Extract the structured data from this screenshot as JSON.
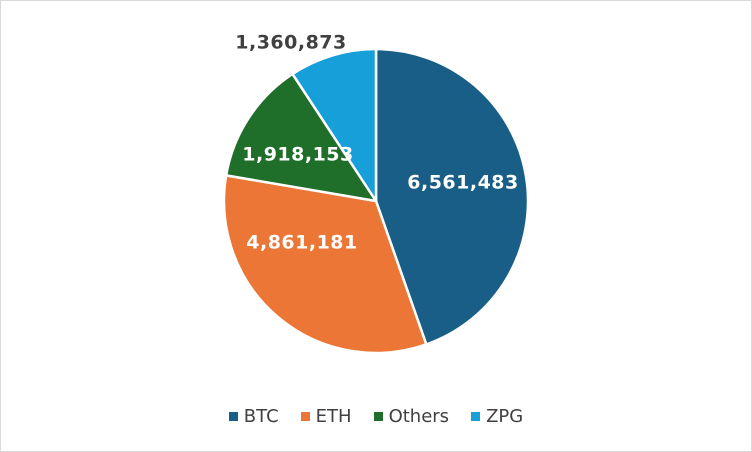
{
  "chart_data": {
    "type": "pie",
    "title": "",
    "categories": [
      "BTC",
      "ETH",
      "Others",
      "ZPG"
    ],
    "values": [
      6561483,
      4861181,
      1918153,
      1360873
    ],
    "data_labels": [
      "6,561,483",
      "4,861,181",
      "1,918,153",
      "1,360,873"
    ],
    "colors": [
      "#185e86",
      "#eb7635",
      "#1f6e29",
      "#169fd8"
    ],
    "label_colors": [
      "#ffffff",
      "#ffffff",
      "#ffffff",
      "#404040"
    ],
    "start": "12 o'clock",
    "direction": "clockwise",
    "legend_position": "bottom"
  }
}
